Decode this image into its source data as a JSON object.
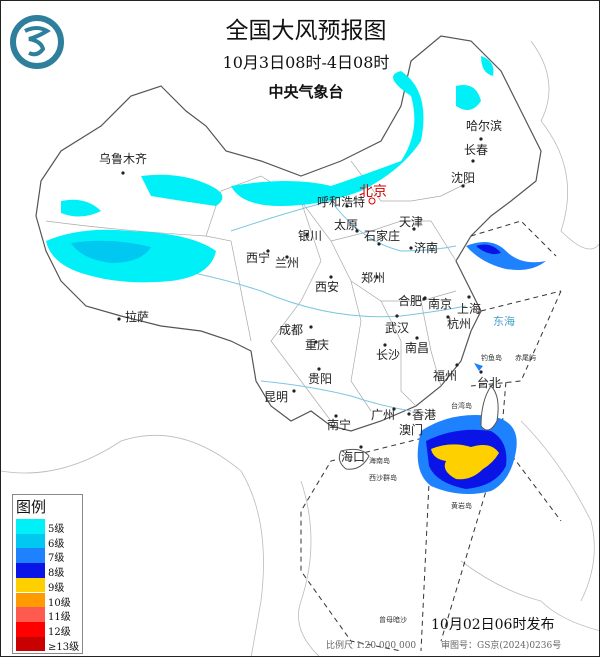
{
  "header": {
    "title": "全国大风预报图",
    "period": "10月3日08时-4日08时",
    "agency": "中央气象台",
    "logo_color": "#2e7f9c"
  },
  "cities": {
    "urumqi": "乌鲁木齐",
    "harbin": "哈尔滨",
    "changchun": "长春",
    "shenyang": "沈阳",
    "beijing": "北京",
    "hohhot": "呼和浩特",
    "tianjin": "天津",
    "yinchuan": "银川",
    "taiyuan": "太原",
    "shijiazhuang": "石家庄",
    "jinan": "济南",
    "xining": "西宁",
    "lanzhou": "兰州",
    "xian": "西安",
    "zhengzhou": "郑州",
    "hefei": "合肥",
    "nanjing": "南京",
    "shanghai": "上海",
    "hangzhou": "杭州",
    "lhasa": "拉萨",
    "chengdu": "成都",
    "chongqing": "重庆",
    "wuhan": "武汉",
    "changsha": "长沙",
    "nanchang": "南昌",
    "fuzhou": "福州",
    "taipei": "台北",
    "guiyang": "贵阳",
    "kunming": "昆明",
    "nanning": "南宁",
    "guangzhou": "广州",
    "hongkong": "香港",
    "macau": "澳门",
    "haikou": "海口"
  },
  "places": {
    "east_sea": "东海",
    "diaoyu": "钓鱼岛",
    "chiwei": "赤尾屿",
    "taiwan_island": "台湾岛",
    "hainan_island": "海南岛",
    "xisha": "西沙群岛",
    "huangyan": "黄岩岛",
    "zengmu": "曾母暗沙"
  },
  "legend": {
    "title": "图例",
    "items": [
      {
        "label": "5级",
        "color": "#00f0f8"
      },
      {
        "label": "6级",
        "color": "#00c8f0"
      },
      {
        "label": "7级",
        "color": "#1e82ff"
      },
      {
        "label": "8级",
        "color": "#0a14e6"
      },
      {
        "label": "9级",
        "color": "#ffd000"
      },
      {
        "label": "10级",
        "color": "#ff9a00"
      },
      {
        "label": "11级",
        "color": "#ff5a50"
      },
      {
        "label": "12级",
        "color": "#ff0000"
      },
      {
        "label": "≥13级",
        "color": "#c80000"
      }
    ]
  },
  "issue_time": "10月02日06时发布",
  "footer": {
    "scale": "比例尺 1:20 000 000",
    "approval": "审图号：GS京(2024)0236号"
  }
}
